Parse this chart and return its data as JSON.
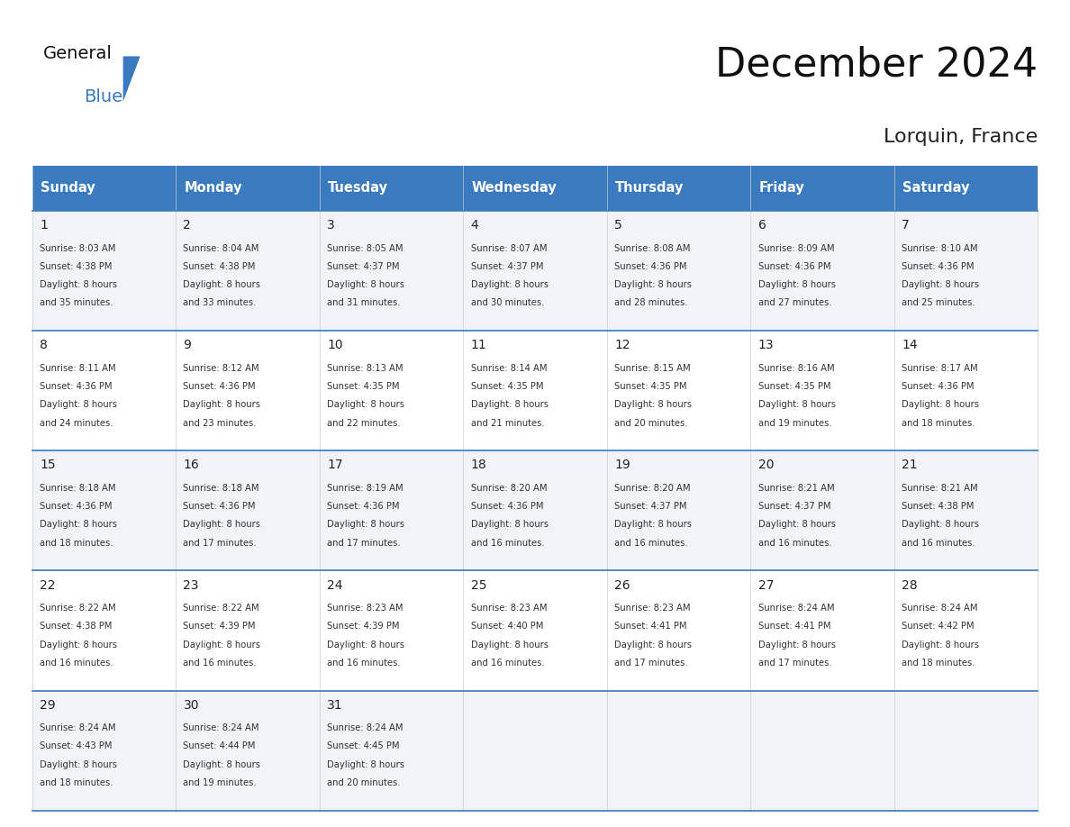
{
  "title": "December 2024",
  "subtitle": "Lorquin, France",
  "header_bg_color": "#3a7abf",
  "header_text_color": "#ffffff",
  "row_bg_even": "#f0f4f8",
  "row_bg_odd": "#ffffff",
  "border_color": "#3a7abf",
  "day_headers": [
    "Sunday",
    "Monday",
    "Tuesday",
    "Wednesday",
    "Thursday",
    "Friday",
    "Saturday"
  ],
  "weeks": [
    [
      {
        "day": 1,
        "sunrise": "8:03 AM",
        "sunset": "4:38 PM",
        "daylight_hours": 8,
        "daylight_minutes": 35
      },
      {
        "day": 2,
        "sunrise": "8:04 AM",
        "sunset": "4:38 PM",
        "daylight_hours": 8,
        "daylight_minutes": 33
      },
      {
        "day": 3,
        "sunrise": "8:05 AM",
        "sunset": "4:37 PM",
        "daylight_hours": 8,
        "daylight_minutes": 31
      },
      {
        "day": 4,
        "sunrise": "8:07 AM",
        "sunset": "4:37 PM",
        "daylight_hours": 8,
        "daylight_minutes": 30
      },
      {
        "day": 5,
        "sunrise": "8:08 AM",
        "sunset": "4:36 PM",
        "daylight_hours": 8,
        "daylight_minutes": 28
      },
      {
        "day": 6,
        "sunrise": "8:09 AM",
        "sunset": "4:36 PM",
        "daylight_hours": 8,
        "daylight_minutes": 27
      },
      {
        "day": 7,
        "sunrise": "8:10 AM",
        "sunset": "4:36 PM",
        "daylight_hours": 8,
        "daylight_minutes": 25
      }
    ],
    [
      {
        "day": 8,
        "sunrise": "8:11 AM",
        "sunset": "4:36 PM",
        "daylight_hours": 8,
        "daylight_minutes": 24
      },
      {
        "day": 9,
        "sunrise": "8:12 AM",
        "sunset": "4:36 PM",
        "daylight_hours": 8,
        "daylight_minutes": 23
      },
      {
        "day": 10,
        "sunrise": "8:13 AM",
        "sunset": "4:35 PM",
        "daylight_hours": 8,
        "daylight_minutes": 22
      },
      {
        "day": 11,
        "sunrise": "8:14 AM",
        "sunset": "4:35 PM",
        "daylight_hours": 8,
        "daylight_minutes": 21
      },
      {
        "day": 12,
        "sunrise": "8:15 AM",
        "sunset": "4:35 PM",
        "daylight_hours": 8,
        "daylight_minutes": 20
      },
      {
        "day": 13,
        "sunrise": "8:16 AM",
        "sunset": "4:35 PM",
        "daylight_hours": 8,
        "daylight_minutes": 19
      },
      {
        "day": 14,
        "sunrise": "8:17 AM",
        "sunset": "4:36 PM",
        "daylight_hours": 8,
        "daylight_minutes": 18
      }
    ],
    [
      {
        "day": 15,
        "sunrise": "8:18 AM",
        "sunset": "4:36 PM",
        "daylight_hours": 8,
        "daylight_minutes": 18
      },
      {
        "day": 16,
        "sunrise": "8:18 AM",
        "sunset": "4:36 PM",
        "daylight_hours": 8,
        "daylight_minutes": 17
      },
      {
        "day": 17,
        "sunrise": "8:19 AM",
        "sunset": "4:36 PM",
        "daylight_hours": 8,
        "daylight_minutes": 17
      },
      {
        "day": 18,
        "sunrise": "8:20 AM",
        "sunset": "4:36 PM",
        "daylight_hours": 8,
        "daylight_minutes": 16
      },
      {
        "day": 19,
        "sunrise": "8:20 AM",
        "sunset": "4:37 PM",
        "daylight_hours": 8,
        "daylight_minutes": 16
      },
      {
        "day": 20,
        "sunrise": "8:21 AM",
        "sunset": "4:37 PM",
        "daylight_hours": 8,
        "daylight_minutes": 16
      },
      {
        "day": 21,
        "sunrise": "8:21 AM",
        "sunset": "4:38 PM",
        "daylight_hours": 8,
        "daylight_minutes": 16
      }
    ],
    [
      {
        "day": 22,
        "sunrise": "8:22 AM",
        "sunset": "4:38 PM",
        "daylight_hours": 8,
        "daylight_minutes": 16
      },
      {
        "day": 23,
        "sunrise": "8:22 AM",
        "sunset": "4:39 PM",
        "daylight_hours": 8,
        "daylight_minutes": 16
      },
      {
        "day": 24,
        "sunrise": "8:23 AM",
        "sunset": "4:39 PM",
        "daylight_hours": 8,
        "daylight_minutes": 16
      },
      {
        "day": 25,
        "sunrise": "8:23 AM",
        "sunset": "4:40 PM",
        "daylight_hours": 8,
        "daylight_minutes": 16
      },
      {
        "day": 26,
        "sunrise": "8:23 AM",
        "sunset": "4:41 PM",
        "daylight_hours": 8,
        "daylight_minutes": 17
      },
      {
        "day": 27,
        "sunrise": "8:24 AM",
        "sunset": "4:41 PM",
        "daylight_hours": 8,
        "daylight_minutes": 17
      },
      {
        "day": 28,
        "sunrise": "8:24 AM",
        "sunset": "4:42 PM",
        "daylight_hours": 8,
        "daylight_minutes": 18
      }
    ],
    [
      {
        "day": 29,
        "sunrise": "8:24 AM",
        "sunset": "4:43 PM",
        "daylight_hours": 8,
        "daylight_minutes": 18
      },
      {
        "day": 30,
        "sunrise": "8:24 AM",
        "sunset": "4:44 PM",
        "daylight_hours": 8,
        "daylight_minutes": 19
      },
      {
        "day": 31,
        "sunrise": "8:24 AM",
        "sunset": "4:45 PM",
        "daylight_hours": 8,
        "daylight_minutes": 20
      },
      null,
      null,
      null,
      null
    ]
  ],
  "logo_text_general": "General",
  "logo_text_blue": "Blue",
  "logo_triangle_color": "#3a7abf"
}
